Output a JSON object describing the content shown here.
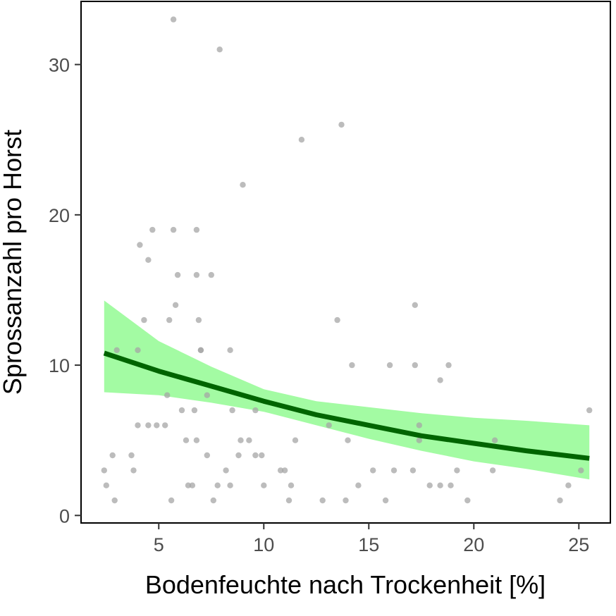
{
  "chart_data": {
    "type": "scatter",
    "title": "",
    "xlabel": "Bodenfeuchte nach Trockenheit [%]",
    "ylabel": "Sprossanzahl pro Horst",
    "xlim": [
      1.3,
      26.5
    ],
    "ylim": [
      -0.5,
      34.2
    ],
    "x_ticks": [
      5,
      10,
      15,
      20,
      25
    ],
    "y_ticks": [
      0,
      10,
      20,
      30
    ],
    "grid": false,
    "legend": "none",
    "colors": {
      "points": "#a6a6a6",
      "fit_line": "#006400",
      "confidence_band": "#a3fba3",
      "panel_border": "#000000"
    },
    "points": [
      [
        2.4,
        3
      ],
      [
        2.5,
        2
      ],
      [
        2.8,
        4
      ],
      [
        2.9,
        1
      ],
      [
        3.0,
        11
      ],
      [
        3.7,
        4
      ],
      [
        3.8,
        3
      ],
      [
        4.0,
        11
      ],
      [
        4.0,
        6
      ],
      [
        4.1,
        18
      ],
      [
        4.3,
        13
      ],
      [
        4.5,
        17
      ],
      [
        4.5,
        6
      ],
      [
        4.7,
        19
      ],
      [
        4.9,
        6
      ],
      [
        5.3,
        6
      ],
      [
        5.4,
        8
      ],
      [
        5.5,
        13
      ],
      [
        5.6,
        1
      ],
      [
        5.7,
        33
      ],
      [
        5.7,
        19
      ],
      [
        5.8,
        14
      ],
      [
        5.9,
        16
      ],
      [
        6.1,
        7
      ],
      [
        6.3,
        5
      ],
      [
        6.4,
        2
      ],
      [
        6.6,
        2
      ],
      [
        6.7,
        7
      ],
      [
        6.8,
        5
      ],
      [
        6.8,
        19
      ],
      [
        6.8,
        16
      ],
      [
        6.9,
        13
      ],
      [
        7.0,
        11
      ],
      [
        7.0,
        11
      ],
      [
        7.3,
        4
      ],
      [
        7.3,
        8
      ],
      [
        7.5,
        16
      ],
      [
        7.6,
        1
      ],
      [
        7.8,
        2
      ],
      [
        7.9,
        31
      ],
      [
        8.2,
        3
      ],
      [
        8.4,
        2
      ],
      [
        8.4,
        11
      ],
      [
        8.5,
        7
      ],
      [
        8.8,
        4
      ],
      [
        8.9,
        5
      ],
      [
        9.0,
        22
      ],
      [
        9.3,
        5
      ],
      [
        9.6,
        7
      ],
      [
        9.6,
        4
      ],
      [
        9.9,
        4
      ],
      [
        10.0,
        2
      ],
      [
        10.8,
        3
      ],
      [
        11.0,
        3
      ],
      [
        11.2,
        1
      ],
      [
        11.3,
        2
      ],
      [
        11.5,
        5
      ],
      [
        11.8,
        25
      ],
      [
        12.8,
        1
      ],
      [
        13.1,
        6
      ],
      [
        13.5,
        13
      ],
      [
        13.7,
        26
      ],
      [
        13.9,
        1
      ],
      [
        14.0,
        5
      ],
      [
        14.2,
        10
      ],
      [
        14.5,
        2
      ],
      [
        15.2,
        3
      ],
      [
        15.8,
        1
      ],
      [
        16.0,
        10
      ],
      [
        16.2,
        3
      ],
      [
        17.1,
        3
      ],
      [
        17.2,
        10
      ],
      [
        17.2,
        14
      ],
      [
        17.4,
        6
      ],
      [
        17.4,
        5
      ],
      [
        17.9,
        2
      ],
      [
        18.4,
        2
      ],
      [
        18.4,
        9
      ],
      [
        18.8,
        10
      ],
      [
        18.9,
        2
      ],
      [
        19.2,
        3
      ],
      [
        19.7,
        1
      ],
      [
        20.9,
        3
      ],
      [
        21.0,
        5
      ],
      [
        24.1,
        1
      ],
      [
        24.5,
        2
      ],
      [
        25.1,
        3
      ],
      [
        25.5,
        7
      ]
    ],
    "fit_line": {
      "x": [
        2.4,
        5,
        7.5,
        10,
        12.5,
        15,
        17.5,
        20,
        22.5,
        25.5
      ],
      "y": [
        10.8,
        9.6,
        8.6,
        7.6,
        6.7,
        6.0,
        5.3,
        4.8,
        4.3,
        3.8
      ]
    },
    "confidence_band": {
      "x": [
        2.4,
        5,
        7.5,
        10,
        12.5,
        15,
        17.5,
        20,
        22.5,
        25.5
      ],
      "lower": [
        8.2,
        8.0,
        7.5,
        6.9,
        6.0,
        5.1,
        4.3,
        3.6,
        3.1,
        2.4
      ],
      "upper": [
        14.3,
        11.6,
        9.9,
        8.4,
        7.6,
        7.2,
        6.8,
        6.5,
        6.3,
        6.0
      ]
    }
  }
}
